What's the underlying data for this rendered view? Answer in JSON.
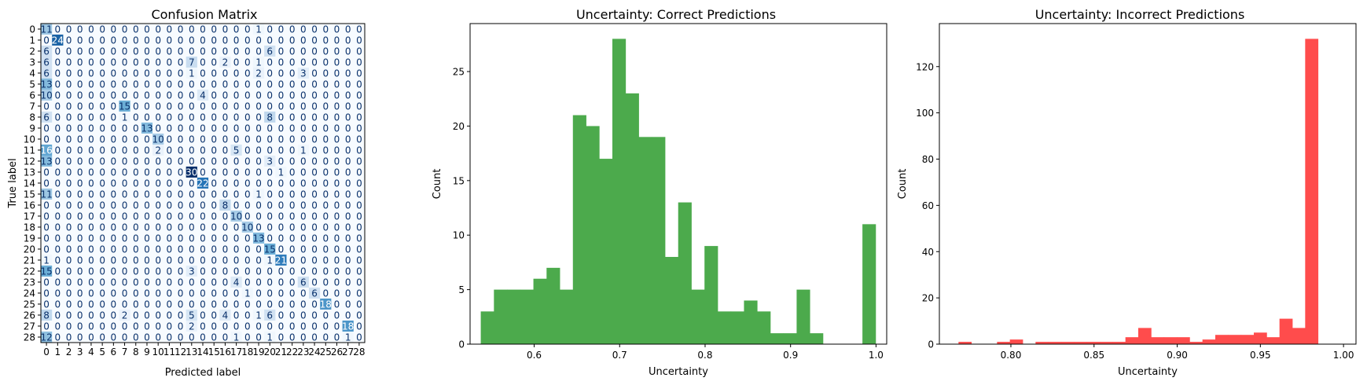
{
  "chart_data": [
    {
      "type": "heatmap",
      "title": "Confusion Matrix",
      "xlabel": "Predicted label",
      "ylabel": "True label",
      "colormap": "Blues",
      "x_tick_labels": [
        "0",
        "1",
        "2",
        "3",
        "4",
        "5",
        "6",
        "7",
        "8",
        "9",
        "10",
        "11",
        "12",
        "13",
        "14",
        "15",
        "16",
        "17",
        "18",
        "19",
        "20",
        "21",
        "22",
        "23",
        "24",
        "25",
        "26",
        "27",
        "28"
      ],
      "y_tick_labels": [
        "0",
        "1",
        "2",
        "3",
        "4",
        "5",
        "6",
        "7",
        "8",
        "9",
        "10",
        "11",
        "12",
        "13",
        "14",
        "15",
        "16",
        "17",
        "18",
        "19",
        "20",
        "21",
        "22",
        "23",
        "24",
        "25",
        "26",
        "27",
        "28"
      ],
      "vmax": 30,
      "matrix": [
        [
          11,
          0,
          0,
          0,
          0,
          0,
          0,
          0,
          0,
          0,
          0,
          0,
          0,
          0,
          0,
          0,
          0,
          0,
          0,
          1,
          0,
          0,
          0,
          0,
          0,
          0,
          0,
          0,
          0
        ],
        [
          0,
          24,
          0,
          0,
          0,
          0,
          0,
          0,
          0,
          0,
          0,
          0,
          0,
          0,
          0,
          0,
          0,
          0,
          0,
          0,
          0,
          0,
          0,
          0,
          0,
          0,
          0,
          0,
          0
        ],
        [
          6,
          0,
          0,
          0,
          0,
          0,
          0,
          0,
          0,
          0,
          0,
          0,
          0,
          0,
          0,
          0,
          0,
          0,
          0,
          0,
          6,
          0,
          0,
          0,
          0,
          0,
          0,
          0,
          0
        ],
        [
          6,
          0,
          0,
          0,
          0,
          0,
          0,
          0,
          0,
          0,
          0,
          0,
          0,
          7,
          0,
          0,
          2,
          0,
          0,
          1,
          0,
          0,
          0,
          0,
          0,
          0,
          0,
          0,
          0
        ],
        [
          6,
          0,
          0,
          0,
          0,
          0,
          0,
          0,
          0,
          0,
          0,
          0,
          0,
          1,
          0,
          0,
          0,
          0,
          0,
          2,
          0,
          0,
          0,
          3,
          0,
          0,
          0,
          0,
          0
        ],
        [
          13,
          0,
          0,
          0,
          0,
          0,
          0,
          0,
          0,
          0,
          0,
          0,
          0,
          0,
          0,
          0,
          0,
          0,
          0,
          0,
          0,
          0,
          0,
          0,
          0,
          0,
          0,
          0,
          0
        ],
        [
          10,
          0,
          0,
          0,
          0,
          0,
          0,
          0,
          0,
          0,
          0,
          0,
          0,
          0,
          4,
          0,
          0,
          0,
          0,
          0,
          0,
          0,
          0,
          0,
          0,
          0,
          0,
          0,
          0
        ],
        [
          0,
          0,
          0,
          0,
          0,
          0,
          0,
          15,
          0,
          0,
          0,
          0,
          0,
          0,
          0,
          0,
          0,
          0,
          0,
          0,
          0,
          0,
          0,
          0,
          0,
          0,
          0,
          0,
          0
        ],
        [
          6,
          0,
          0,
          0,
          0,
          0,
          0,
          1,
          0,
          0,
          0,
          0,
          0,
          0,
          0,
          0,
          0,
          0,
          0,
          0,
          8,
          0,
          0,
          0,
          0,
          0,
          0,
          0,
          0
        ],
        [
          0,
          0,
          0,
          0,
          0,
          0,
          0,
          0,
          0,
          13,
          0,
          0,
          0,
          0,
          0,
          0,
          0,
          0,
          0,
          0,
          0,
          0,
          0,
          0,
          0,
          0,
          0,
          0,
          0
        ],
        [
          0,
          0,
          0,
          0,
          0,
          0,
          0,
          0,
          0,
          0,
          10,
          0,
          0,
          0,
          0,
          0,
          0,
          0,
          0,
          0,
          0,
          0,
          0,
          0,
          0,
          0,
          0,
          0,
          0
        ],
        [
          16,
          0,
          0,
          0,
          0,
          0,
          0,
          0,
          0,
          0,
          2,
          0,
          0,
          0,
          0,
          0,
          0,
          5,
          0,
          0,
          0,
          0,
          0,
          1,
          0,
          0,
          0,
          0,
          0
        ],
        [
          13,
          0,
          0,
          0,
          0,
          0,
          0,
          0,
          0,
          0,
          0,
          0,
          0,
          0,
          0,
          0,
          0,
          0,
          0,
          0,
          3,
          0,
          0,
          0,
          0,
          0,
          0,
          0,
          0
        ],
        [
          0,
          0,
          0,
          0,
          0,
          0,
          0,
          0,
          0,
          0,
          0,
          0,
          0,
          30,
          0,
          0,
          0,
          0,
          0,
          0,
          0,
          1,
          0,
          0,
          0,
          0,
          0,
          0,
          0
        ],
        [
          0,
          0,
          0,
          0,
          0,
          0,
          0,
          0,
          0,
          0,
          0,
          0,
          0,
          0,
          22,
          0,
          0,
          0,
          0,
          0,
          0,
          0,
          0,
          0,
          0,
          0,
          0,
          0,
          0
        ],
        [
          11,
          0,
          0,
          0,
          0,
          0,
          0,
          0,
          0,
          0,
          0,
          0,
          0,
          0,
          0,
          0,
          0,
          0,
          0,
          1,
          0,
          0,
          0,
          0,
          0,
          0,
          0,
          0,
          0
        ],
        [
          0,
          0,
          0,
          0,
          0,
          0,
          0,
          0,
          0,
          0,
          0,
          0,
          0,
          0,
          0,
          0,
          8,
          0,
          0,
          0,
          0,
          0,
          0,
          0,
          0,
          0,
          0,
          0,
          0
        ],
        [
          0,
          0,
          0,
          0,
          0,
          0,
          0,
          0,
          0,
          0,
          0,
          0,
          0,
          0,
          0,
          0,
          0,
          10,
          0,
          0,
          0,
          0,
          0,
          0,
          0,
          0,
          0,
          0,
          0
        ],
        [
          0,
          0,
          0,
          0,
          0,
          0,
          0,
          0,
          0,
          0,
          0,
          0,
          0,
          0,
          0,
          0,
          0,
          0,
          10,
          0,
          0,
          0,
          0,
          0,
          0,
          0,
          0,
          0,
          0
        ],
        [
          0,
          0,
          0,
          0,
          0,
          0,
          0,
          0,
          0,
          0,
          0,
          0,
          0,
          0,
          0,
          0,
          0,
          0,
          0,
          13,
          0,
          0,
          0,
          0,
          0,
          0,
          0,
          0,
          0
        ],
        [
          0,
          0,
          0,
          0,
          0,
          0,
          0,
          0,
          0,
          0,
          0,
          0,
          0,
          0,
          0,
          0,
          0,
          0,
          0,
          0,
          15,
          0,
          0,
          0,
          0,
          0,
          0,
          0,
          0
        ],
        [
          1,
          0,
          0,
          0,
          0,
          0,
          0,
          0,
          0,
          0,
          0,
          0,
          0,
          0,
          0,
          0,
          0,
          0,
          0,
          0,
          1,
          21,
          0,
          0,
          0,
          0,
          0,
          0,
          0
        ],
        [
          15,
          0,
          0,
          0,
          0,
          0,
          0,
          0,
          0,
          0,
          0,
          0,
          0,
          3,
          0,
          0,
          0,
          0,
          0,
          0,
          0,
          0,
          0,
          0,
          0,
          0,
          0,
          0,
          0
        ],
        [
          0,
          0,
          0,
          0,
          0,
          0,
          0,
          0,
          0,
          0,
          0,
          0,
          0,
          0,
          0,
          0,
          0,
          4,
          0,
          0,
          0,
          0,
          0,
          6,
          0,
          0,
          0,
          0,
          0
        ],
        [
          0,
          0,
          0,
          0,
          0,
          0,
          0,
          0,
          0,
          0,
          0,
          0,
          0,
          0,
          0,
          0,
          0,
          0,
          1,
          0,
          0,
          0,
          0,
          0,
          6,
          0,
          0,
          0,
          0
        ],
        [
          0,
          0,
          0,
          0,
          0,
          0,
          0,
          0,
          0,
          0,
          0,
          0,
          0,
          0,
          0,
          0,
          0,
          0,
          0,
          0,
          0,
          0,
          0,
          0,
          0,
          18,
          0,
          0,
          0
        ],
        [
          8,
          0,
          0,
          0,
          0,
          0,
          0,
          2,
          0,
          0,
          0,
          0,
          0,
          5,
          0,
          0,
          4,
          0,
          0,
          1,
          6,
          0,
          0,
          0,
          0,
          0,
          0,
          0,
          0
        ],
        [
          0,
          0,
          0,
          0,
          0,
          0,
          0,
          0,
          0,
          0,
          0,
          0,
          0,
          2,
          0,
          0,
          0,
          0,
          0,
          0,
          0,
          0,
          0,
          0,
          0,
          0,
          0,
          18,
          0
        ],
        [
          12,
          0,
          0,
          0,
          0,
          0,
          0,
          0,
          0,
          0,
          0,
          0,
          0,
          0,
          0,
          0,
          0,
          1,
          0,
          0,
          1,
          0,
          0,
          0,
          0,
          0,
          0,
          1,
          0
        ]
      ]
    },
    {
      "type": "histogram",
      "title": "Uncertainty: Correct Predictions",
      "xlabel": "Uncertainty",
      "ylabel": "Count",
      "color": "#4caa4c",
      "bin_start": 0.5375,
      "bin_width": 0.0154,
      "counts": [
        3,
        5,
        5,
        5,
        6,
        7,
        5,
        21,
        20,
        17,
        28,
        23,
        19,
        19,
        8,
        13,
        5,
        9,
        3,
        3,
        4,
        3,
        1,
        1,
        5,
        1,
        0,
        0,
        0,
        11
      ],
      "xlim": [
        0.525,
        1.0125
      ],
      "ylim": [
        0,
        29.4
      ],
      "x_ticks": [
        0.6,
        0.7,
        0.8,
        0.9,
        1.0
      ],
      "x_tick_labels": [
        "0.6",
        "0.7",
        "0.8",
        "0.9",
        "1.0"
      ],
      "y_ticks": [
        0,
        5,
        10,
        15,
        20,
        25
      ],
      "y_tick_labels": [
        "0",
        "5",
        "10",
        "15",
        "20",
        "25"
      ]
    },
    {
      "type": "histogram",
      "title": "Uncertainty: Incorrect Predictions",
      "xlabel": "Uncertainty",
      "ylabel": "Count",
      "color": "#ff4c4c",
      "bin_start": 0.7685,
      "bin_width": 0.00772,
      "counts": [
        1,
        0,
        0,
        1,
        2,
        0,
        1,
        1,
        1,
        1,
        1,
        1,
        1,
        3,
        7,
        3,
        3,
        3,
        1,
        2,
        4,
        4,
        4,
        5,
        3,
        11,
        7,
        132
      ],
      "xlim": [
        0.757,
        1.0075
      ],
      "ylim": [
        0,
        138.6
      ],
      "x_ticks": [
        0.8,
        0.85,
        0.9,
        0.95,
        1.0
      ],
      "x_tick_labels": [
        "0.80",
        "0.85",
        "0.90",
        "0.95",
        "1.00"
      ],
      "y_ticks": [
        0,
        20,
        40,
        60,
        80,
        100,
        120
      ],
      "y_tick_labels": [
        "0",
        "20",
        "40",
        "60",
        "80",
        "100",
        "120"
      ]
    }
  ]
}
